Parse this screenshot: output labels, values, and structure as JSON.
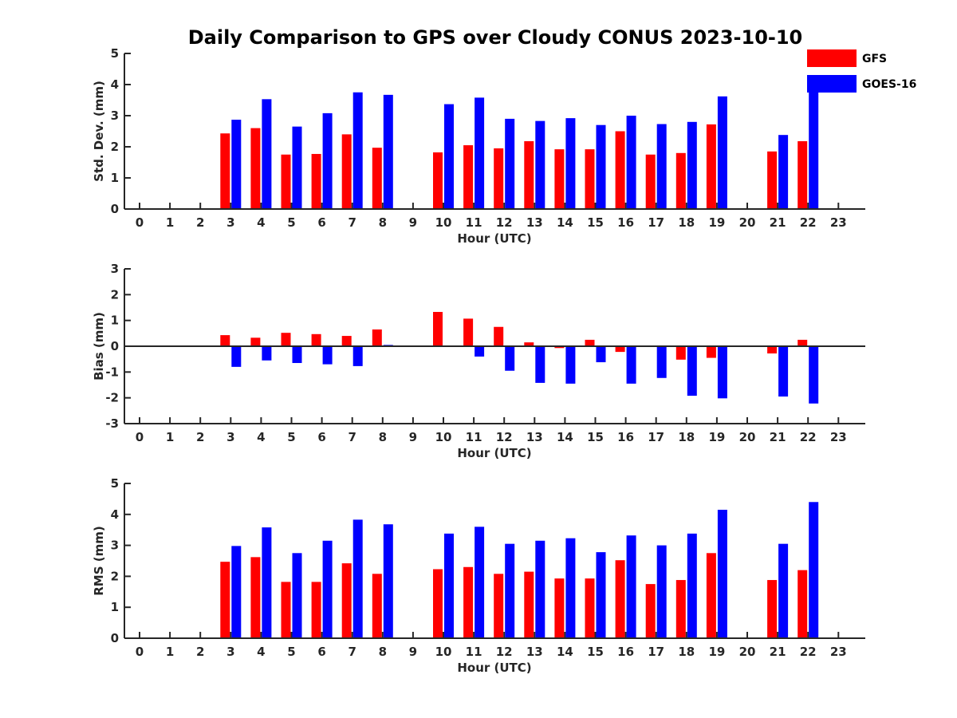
{
  "title": "Daily Comparison to GPS over Cloudy CONUS 2023-10-10",
  "legend": [
    {
      "name": "GFS",
      "color": "#ff0000"
    },
    {
      "name": "GOES-16",
      "color": "#0000ff"
    }
  ],
  "chart_data": [
    {
      "type": "bar",
      "ylabel": "Std. Dev. (mm)",
      "xlabel": "Hour (UTC)",
      "ylim": [
        0,
        5
      ],
      "yticks": [
        0,
        1,
        2,
        3,
        4,
        5
      ],
      "categories": [
        "0",
        "1",
        "2",
        "3",
        "4",
        "5",
        "6",
        "7",
        "8",
        "9",
        "10",
        "11",
        "12",
        "13",
        "14",
        "15",
        "16",
        "17",
        "18",
        "19",
        "20",
        "21",
        "22",
        "23"
      ],
      "series": [
        {
          "name": "GFS",
          "color": "#ff0000",
          "values": [
            null,
            null,
            null,
            2.43,
            2.6,
            1.75,
            1.77,
            2.4,
            1.97,
            null,
            1.82,
            2.05,
            1.95,
            2.18,
            1.92,
            1.92,
            2.5,
            1.75,
            1.8,
            2.72,
            null,
            1.85,
            2.18,
            null
          ]
        },
        {
          "name": "GOES-16",
          "color": "#0000ff",
          "values": [
            null,
            null,
            null,
            2.87,
            3.53,
            2.65,
            3.08,
            3.75,
            3.67,
            null,
            3.37,
            3.58,
            2.9,
            2.83,
            2.92,
            2.7,
            3.0,
            2.73,
            2.8,
            3.62,
            null,
            2.38,
            3.8,
            null
          ]
        }
      ]
    },
    {
      "type": "bar",
      "ylabel": "Bias (mm)",
      "xlabel": "Hour (UTC)",
      "ylim": [
        -3,
        3
      ],
      "yticks": [
        -3,
        -2,
        -1,
        0,
        1,
        2,
        3
      ],
      "categories": [
        "0",
        "1",
        "2",
        "3",
        "4",
        "5",
        "6",
        "7",
        "8",
        "9",
        "10",
        "11",
        "12",
        "13",
        "14",
        "15",
        "16",
        "17",
        "18",
        "19",
        "20",
        "21",
        "22",
        "23"
      ],
      "series": [
        {
          "name": "GFS",
          "color": "#ff0000",
          "values": [
            null,
            null,
            null,
            0.43,
            0.33,
            0.52,
            0.47,
            0.4,
            0.65,
            null,
            1.33,
            1.07,
            0.75,
            0.15,
            -0.07,
            0.25,
            -0.22,
            0.0,
            -0.52,
            -0.45,
            null,
            -0.28,
            0.25,
            null
          ]
        },
        {
          "name": "GOES-16",
          "color": "#0000ff",
          "values": [
            null,
            null,
            null,
            -0.8,
            -0.55,
            -0.65,
            -0.7,
            -0.77,
            0.05,
            null,
            0.0,
            -0.4,
            -0.95,
            -1.42,
            -1.45,
            -0.62,
            -1.45,
            -1.23,
            -1.92,
            -2.02,
            null,
            -1.95,
            -2.22,
            null
          ]
        }
      ]
    },
    {
      "type": "bar",
      "ylabel": "RMS (mm)",
      "xlabel": "Hour (UTC)",
      "ylim": [
        0,
        5
      ],
      "yticks": [
        0,
        1,
        2,
        3,
        4,
        5
      ],
      "categories": [
        "0",
        "1",
        "2",
        "3",
        "4",
        "5",
        "6",
        "7",
        "8",
        "9",
        "10",
        "11",
        "12",
        "13",
        "14",
        "15",
        "16",
        "17",
        "18",
        "19",
        "20",
        "21",
        "22",
        "23"
      ],
      "series": [
        {
          "name": "GFS",
          "color": "#ff0000",
          "values": [
            null,
            null,
            null,
            2.47,
            2.62,
            1.82,
            1.82,
            2.42,
            2.08,
            null,
            2.23,
            2.3,
            2.08,
            2.15,
            1.93,
            1.93,
            2.52,
            1.75,
            1.88,
            2.75,
            null,
            1.88,
            2.2,
            null
          ]
        },
        {
          "name": "GOES-16",
          "color": "#0000ff",
          "values": [
            null,
            null,
            null,
            2.98,
            3.58,
            2.75,
            3.15,
            3.83,
            3.68,
            null,
            3.38,
            3.6,
            3.05,
            3.15,
            3.23,
            2.78,
            3.32,
            3.0,
            3.38,
            4.15,
            null,
            3.05,
            4.4,
            null
          ]
        }
      ]
    }
  ]
}
